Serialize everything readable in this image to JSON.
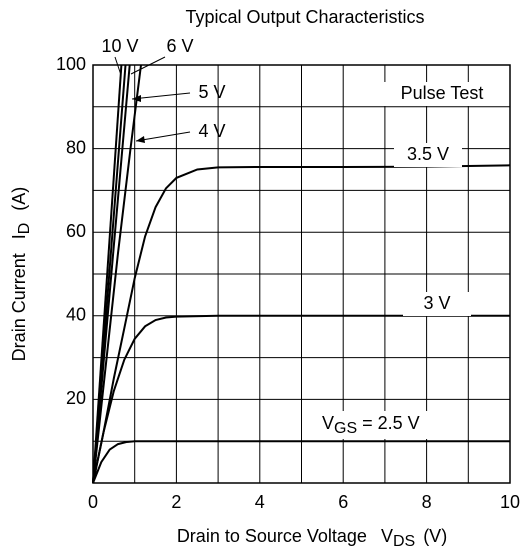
{
  "chart_data": {
    "type": "line",
    "title": "Typical Output Characteristics",
    "xlabel": {
      "text": "Drain to Source Voltage",
      "symbol": "V",
      "sub": "DS",
      "unit": "(V)"
    },
    "ylabel": {
      "text": "Drain Current",
      "symbol": "I",
      "sub": "D",
      "unit": "(A)"
    },
    "annotation": "Pulse Test",
    "gate_label": {
      "symbol": "V",
      "sub": "GS",
      "eq": "="
    },
    "xlim": [
      0,
      10
    ],
    "ylim": [
      0,
      100
    ],
    "xticks": [
      0,
      2,
      4,
      6,
      8,
      10
    ],
    "yticks": [
      20,
      40,
      60,
      80,
      100
    ],
    "xminor": [
      1,
      3,
      5,
      7,
      9
    ],
    "yminor": [
      10,
      30,
      50,
      70,
      90
    ],
    "grid": true,
    "color": "#000000",
    "series": [
      {
        "name": "10 V",
        "x": [
          0,
          0.68
        ],
        "values": [
          0,
          100
        ]
      },
      {
        "name": "6 V",
        "x": [
          0,
          0.78
        ],
        "values": [
          0,
          100
        ]
      },
      {
        "name": "5 V",
        "x": [
          0,
          0.88
        ],
        "values": [
          0,
          100
        ]
      },
      {
        "name": "4 V",
        "x": [
          0,
          0.6,
          0.9,
          1.05,
          1.15
        ],
        "values": [
          0,
          55,
          80,
          92,
          100
        ]
      },
      {
        "name": "3.5 V",
        "x": [
          0,
          0.25,
          0.5,
          0.75,
          1,
          1.25,
          1.5,
          1.75,
          2,
          2.5,
          3,
          4,
          6,
          8,
          10
        ],
        "values": [
          0,
          12,
          25,
          37,
          49,
          59,
          66,
          70.5,
          73,
          75,
          75.5,
          75.6,
          75.6,
          75.7,
          76
        ]
      },
      {
        "name": "3 V",
        "x": [
          0,
          0.25,
          0.5,
          0.75,
          1,
          1.25,
          1.5,
          1.75,
          2,
          3,
          10
        ],
        "values": [
          0,
          12,
          22,
          29.5,
          34.5,
          37.5,
          39,
          39.6,
          39.8,
          40,
          40
        ]
      },
      {
        "name": "2.5 V",
        "x": [
          0,
          0.2,
          0.4,
          0.6,
          0.8,
          1,
          1.5,
          2,
          10
        ],
        "values": [
          0,
          5,
          8,
          9.3,
          9.8,
          10,
          10,
          10,
          10
        ]
      }
    ]
  }
}
